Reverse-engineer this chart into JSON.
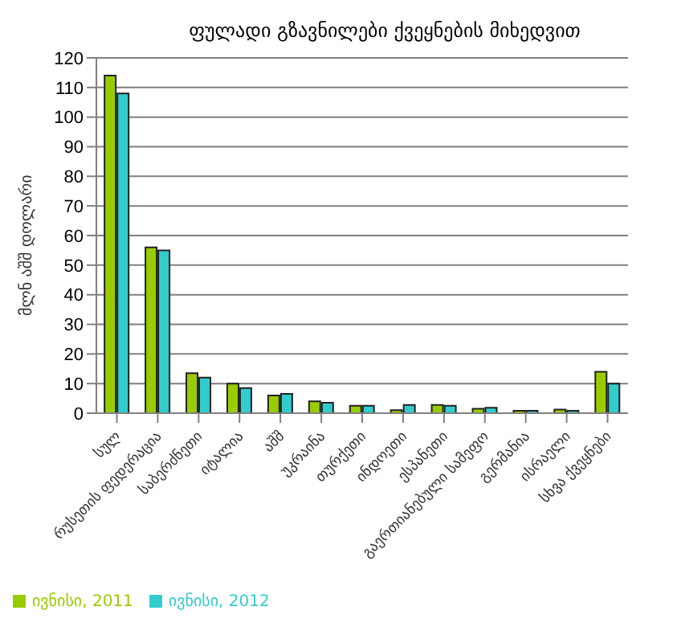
{
  "chart_data": {
    "type": "bar",
    "title": "ფულადი გზავნილები ქვეყნების მიხედვით",
    "ylabel": "მლნ აშშ დოლარი",
    "categories": [
      "სულ",
      "რუსეთის ფედერაცია",
      "საბერძნეთი",
      "იტალია",
      "აშშ",
      "უკრაინა",
      "თურქეთი",
      "ინდოეთი",
      "ესპანეთი",
      "გაერთიანებული სამეფო",
      "გერმანია",
      "ისრაელი",
      "სხვა ქვეყნები"
    ],
    "series": [
      {
        "name": "ივნისი, 2011",
        "color": "#99cc00",
        "values": [
          114,
          56,
          13.5,
          10,
          6,
          4,
          2.5,
          1,
          2.8,
          1.5,
          0.8,
          1.2,
          14
        ]
      },
      {
        "name": "ივნისი, 2012",
        "color": "#33cccc",
        "values": [
          108,
          55,
          12,
          8.5,
          6.5,
          3.5,
          2.5,
          2.8,
          2.5,
          1.8,
          0.8,
          0.8,
          10
        ]
      }
    ],
    "ylim": [
      0,
      120
    ],
    "yticks": [
      0,
      10,
      20,
      30,
      40,
      50,
      60,
      70,
      80,
      90,
      100,
      110,
      120
    ],
    "grid": "y",
    "legend": "bottom left"
  }
}
